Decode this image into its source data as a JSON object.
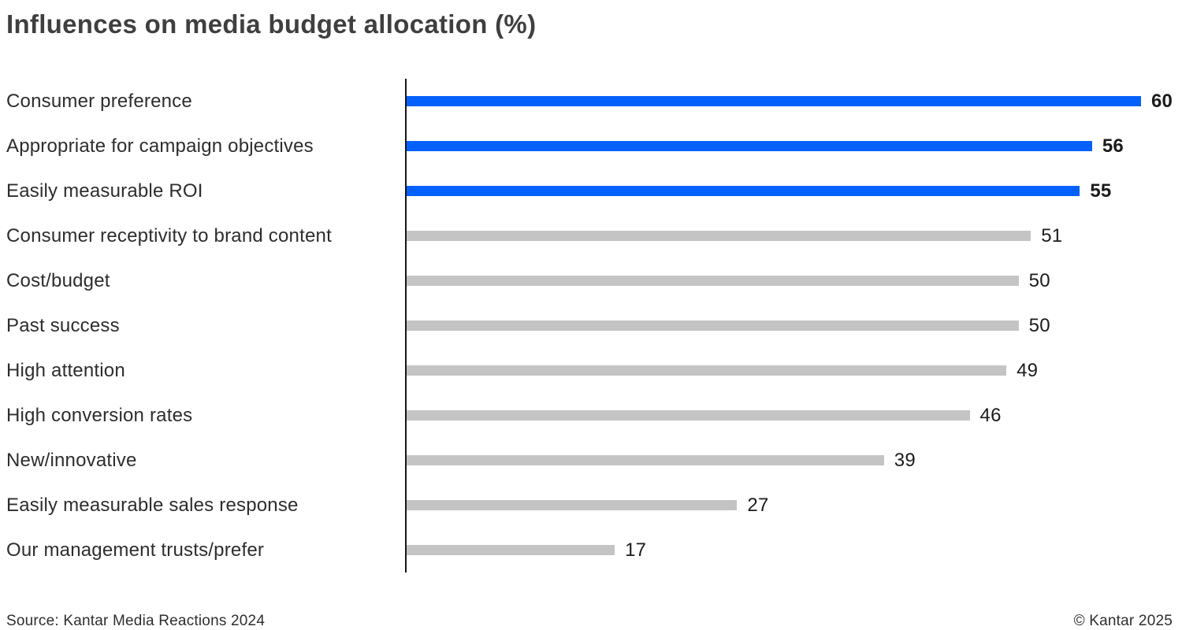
{
  "title": "Influences on media budget allocation (%)",
  "footer": {
    "source": "Source: Kantar Media Reactions 2024",
    "copyright": "© Kantar 2025"
  },
  "colors": {
    "highlight_bar": "#0561fc",
    "default_bar": "#c4c4c4",
    "axis": "#161616",
    "title_text": "#3f3f3f",
    "label_text": "#2d2d2d"
  },
  "chart_data": {
    "type": "bar",
    "orientation": "horizontal",
    "title": "Influences on media budget allocation (%)",
    "xlabel": "",
    "ylabel": "",
    "xlim": [
      0,
      60
    ],
    "grid": false,
    "legend": "none",
    "categories": [
      "Consumer preference",
      "Appropriate for campaign objectives",
      "Easily measurable ROI",
      "Consumer receptivity to brand content",
      "Cost/budget",
      "Past success",
      "High attention",
      "High conversion rates",
      "New/innovative",
      "Easily measurable sales response",
      "Our management trusts/prefer"
    ],
    "values": [
      60,
      56,
      55,
      51,
      50,
      50,
      49,
      46,
      39,
      27,
      17
    ],
    "highlighted": [
      true,
      true,
      true,
      false,
      false,
      false,
      false,
      false,
      false,
      false,
      false
    ]
  }
}
